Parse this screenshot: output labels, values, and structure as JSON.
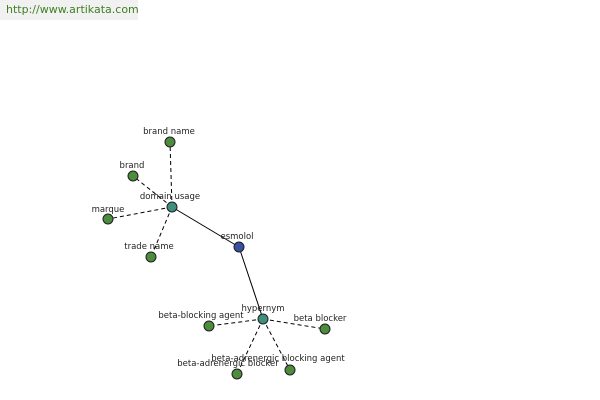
{
  "header": {
    "url": "http://www.artikata.com"
  },
  "colors": {
    "link": "#3f7f22",
    "header_bg": "#f1f1f1",
    "leaf_node": "#4c8c3c",
    "hub_node": "#3f8f7f",
    "root_node": "#3b4fa0",
    "edge": "#000000"
  },
  "graph": {
    "root": {
      "id": "esmolol",
      "label": "esmolol",
      "icon": "root-node"
    },
    "hubs": [
      {
        "id": "domain-usage",
        "label": "domain usage"
      },
      {
        "id": "hypernym",
        "label": "hypernym"
      }
    ],
    "leaves": [
      {
        "id": "brand-name",
        "label": "brand name",
        "hub": "domain-usage"
      },
      {
        "id": "brand",
        "label": "brand",
        "hub": "domain-usage"
      },
      {
        "id": "marque",
        "label": "marque",
        "hub": "domain-usage"
      },
      {
        "id": "trade-name",
        "label": "trade name",
        "hub": "domain-usage"
      },
      {
        "id": "beta-blocking-agent",
        "label": "beta-blocking agent",
        "hub": "hypernym"
      },
      {
        "id": "beta-blocker",
        "label": "beta blocker",
        "hub": "hypernym"
      },
      {
        "id": "beta-adrenergic-blocker",
        "label": "beta-adrenergic blocker",
        "hub": "hypernym"
      },
      {
        "id": "beta-adrenergic-blocking-agent",
        "label": "beta-adrenergic blocking agent",
        "hub": "hypernym"
      }
    ]
  }
}
